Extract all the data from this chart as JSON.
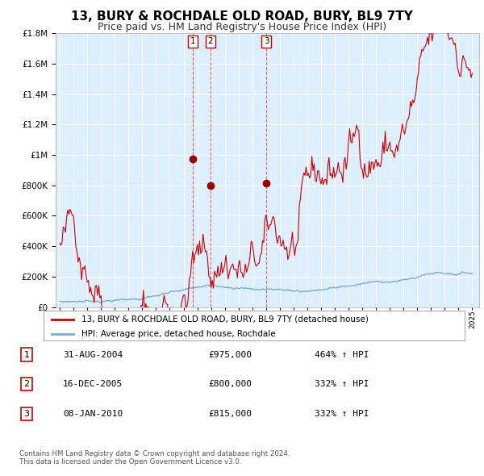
{
  "title": "13, BURY & ROCHDALE OLD ROAD, BURY, BL9 7TY",
  "subtitle": "Price paid vs. HM Land Registry's House Price Index (HPI)",
  "title_fontsize": 11,
  "subtitle_fontsize": 9,
  "legend_label_red": "13, BURY & ROCHDALE OLD ROAD, BURY, BL9 7TY (detached house)",
  "legend_label_blue": "HPI: Average price, detached house, Rochdale",
  "footer": "Contains HM Land Registry data © Crown copyright and database right 2024.\nThis data is licensed under the Open Government Licence v3.0.",
  "transactions": [
    {
      "num": 1,
      "date": "31-AUG-2004",
      "price": 975000,
      "pct": "464%",
      "direction": "↑"
    },
    {
      "num": 2,
      "date": "16-DEC-2005",
      "price": 800000,
      "pct": "332%",
      "direction": "↑"
    },
    {
      "num": 3,
      "date": "08-JAN-2010",
      "price": 815000,
      "pct": "332%",
      "direction": "↑"
    }
  ],
  "transaction_years": [
    2004.664,
    2005.956,
    2010.021
  ],
  "transaction_red_vals": [
    975000,
    800000,
    815000
  ],
  "ylim": [
    0,
    1800000
  ],
  "xlim": [
    1994.7,
    2025.5
  ],
  "background_color": "#ffffff",
  "plot_bg_color": "#ddeeff",
  "grid_color": "#ffffff",
  "red_color": "#cc0000",
  "blue_color": "#7aaccc",
  "dark_red": "#990000"
}
